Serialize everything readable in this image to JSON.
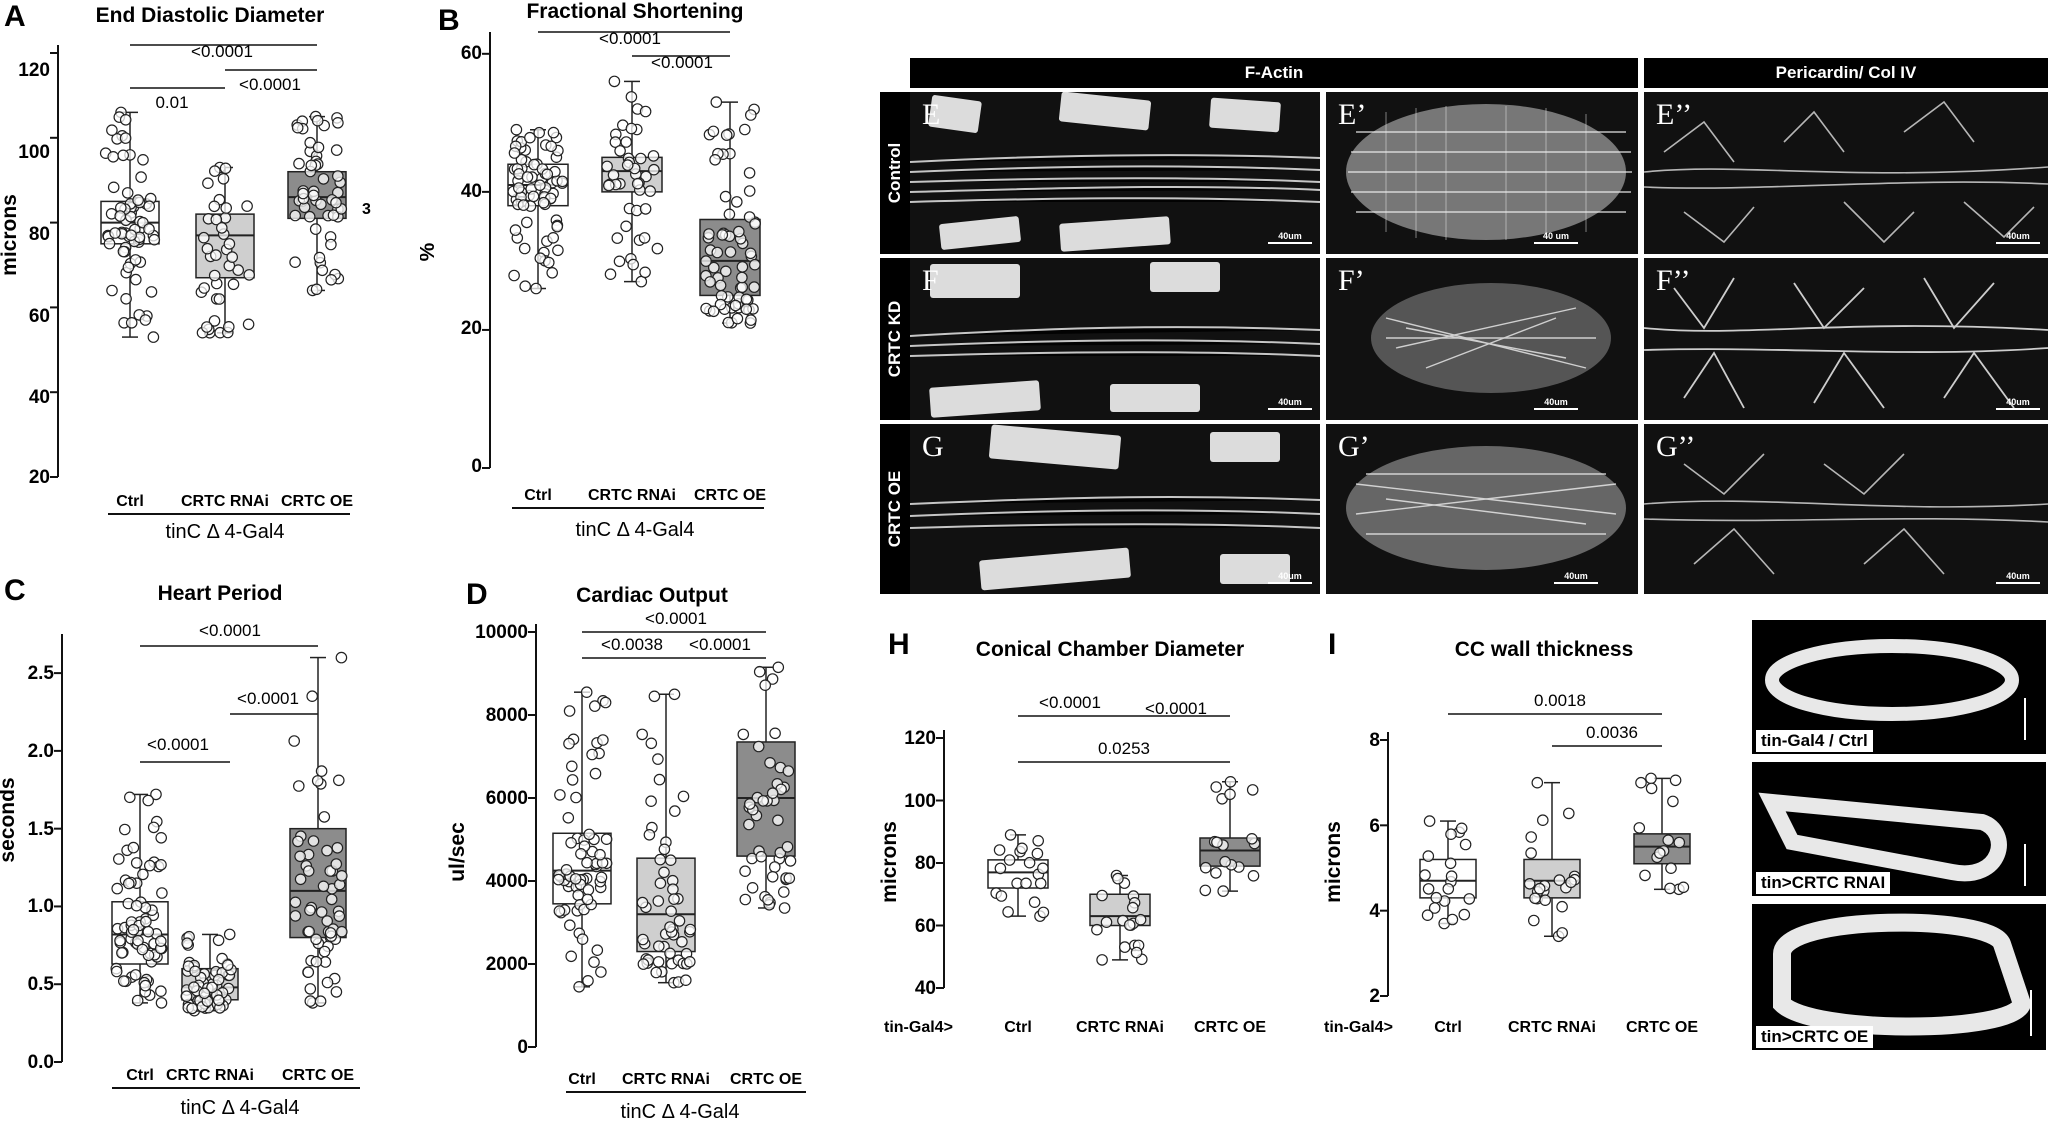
{
  "panels": {
    "A": {
      "label": "A",
      "title": "End Diastolic Diameter",
      "ylabel": "microns",
      "yticks": [
        "20",
        "40",
        "60",
        "80",
        "100",
        "120"
      ],
      "categories": [
        "Ctrl",
        "CRTC RNAi",
        "CRTC OE"
      ],
      "genotype": "tinC  Δ 4-Gal4",
      "sig": [
        "0.01",
        "<0.0001",
        "<0.0001"
      ],
      "note": "3"
    },
    "B": {
      "label": "B",
      "title": "Fractional Shortening",
      "ylabel": "%",
      "yticks": [
        "0",
        "20",
        "40",
        "60"
      ],
      "categories": [
        "Ctrl",
        "CRTC RNAi",
        "CRTC OE"
      ],
      "genotype": "tinC  Δ 4-Gal4",
      "sig": [
        "<0.0001",
        "<0.0001"
      ]
    },
    "C": {
      "label": "C",
      "title": "Heart  Period",
      "ylabel": "seconds",
      "yticks": [
        "0.0",
        "0.5",
        "1.0",
        "1.5",
        "2.0",
        "2.5"
      ],
      "categories": [
        "Ctrl",
        "CRTC RNAi",
        "CRTC OE"
      ],
      "genotype": "tinC  Δ 4-Gal4",
      "sig": [
        "<0.0001",
        "<0.0001",
        "<0.0001"
      ]
    },
    "D": {
      "label": "D",
      "title": "Cardiac Output",
      "ylabel": "ul/sec",
      "yticks": [
        "0",
        "2000",
        "4000",
        "6000",
        "8000",
        "10000"
      ],
      "categories": [
        "Ctrl",
        "CRTC RNAi",
        "CRTC OE"
      ],
      "genotype": "tinC  Δ 4-Gal4",
      "sig": [
        "<0.0038",
        "<0.0001",
        "<0.0001"
      ]
    },
    "H": {
      "label": "H",
      "title": "Conical Chamber Diameter",
      "ylabel": "microns",
      "yticks": [
        "40",
        "60",
        "80",
        "100",
        "120"
      ],
      "categories": [
        "Ctrl",
        "CRTC RNAi",
        "CRTC OE"
      ],
      "genotype": "tin-Gal4>",
      "sig": [
        "<0.0001",
        "<0.0001",
        "0.0253"
      ]
    },
    "I": {
      "label": "I",
      "title": "CC wall thickness",
      "ylabel": "microns",
      "yticks": [
        "2",
        "4",
        "6",
        "8"
      ],
      "categories": [
        "Ctrl",
        "CRTC RNAi",
        "CRTC OE"
      ],
      "genotype": "tin-Gal4>",
      "sig": [
        "0.0018",
        "0.0036"
      ]
    }
  },
  "micrographs": {
    "headers": [
      "F-Actin",
      "Pericardin/ Col IV"
    ],
    "rows": [
      "Control",
      "CRTC KD",
      "CRTC OE"
    ],
    "tiles": [
      [
        "E",
        "E’",
        "E’’"
      ],
      [
        "F",
        "F’",
        "F’’"
      ],
      [
        "G",
        "G’",
        "G’’"
      ]
    ],
    "scale": "40um",
    "scale_alt": "40 um"
  },
  "cross_sections": [
    "tin-Gal4 / Ctrl",
    "tin>CRTC RNAI",
    "tin>CRTC OE"
  ],
  "colors": {
    "ctrl_box": "#ffffff",
    "rnai_box": "#cfcfcf",
    "oe_box": "#8c8c8c",
    "micro_bg": "#111111",
    "fibers": "#e8e8e8"
  },
  "chart_data": [
    {
      "type": "box",
      "panel": "A",
      "title": "End Diastolic Diameter",
      "ylabel": "microns",
      "ylim": [
        20,
        120
      ],
      "categories": [
        "Ctrl",
        "CRTC RNAi",
        "CRTC OE"
      ],
      "series": [
        {
          "stats": {
            "min": 53,
            "q1": 75,
            "median": 80,
            "q3": 85,
            "max": 106
          },
          "n": 70
        },
        {
          "stats": {
            "min": 54,
            "q1": 67,
            "median": 77,
            "q3": 82,
            "max": 93
          },
          "n": 40
        },
        {
          "stats": {
            "min": 64,
            "q1": 81,
            "median": 86,
            "q3": 92,
            "max": 105
          },
          "n": 55
        }
      ],
      "comparisons": [
        {
          "pair": [
            "Ctrl",
            "CRTC RNAi"
          ],
          "p": "0.01"
        },
        {
          "pair": [
            "CRTC RNAi",
            "CRTC OE"
          ],
          "p": "<0.0001"
        },
        {
          "pair": [
            "Ctrl",
            "CRTC OE"
          ],
          "p": "<0.0001"
        }
      ]
    },
    {
      "type": "box",
      "panel": "B",
      "title": "Fractional Shortening",
      "ylabel": "%",
      "ylim": [
        0,
        60
      ],
      "categories": [
        "Ctrl",
        "CRTC RNAi",
        "CRTC OE"
      ],
      "series": [
        {
          "stats": {
            "min": 26,
            "q1": 38,
            "median": 41,
            "q3": 44,
            "max": 49
          },
          "n": 75
        },
        {
          "stats": {
            "min": 27,
            "q1": 40,
            "median": 43,
            "q3": 45,
            "max": 56
          },
          "n": 45
        },
        {
          "stats": {
            "min": 21,
            "q1": 25,
            "median": 30,
            "q3": 36,
            "max": 53
          },
          "n": 70
        }
      ],
      "comparisons": [
        {
          "pair": [
            "CRTC RNAi",
            "CRTC OE"
          ],
          "p": "<0.0001"
        },
        {
          "pair": [
            "Ctrl",
            "CRTC OE"
          ],
          "p": "<0.0001"
        }
      ]
    },
    {
      "type": "box",
      "panel": "C",
      "title": "Heart  Period",
      "ylabel": "seconds",
      "ylim": [
        0,
        2.6
      ],
      "categories": [
        "Ctrl",
        "CRTC RNAi",
        "CRTC OE"
      ],
      "series": [
        {
          "stats": {
            "min": 0.38,
            "q1": 0.63,
            "median": 0.82,
            "q3": 1.03,
            "max": 1.72
          },
          "n": 75
        },
        {
          "stats": {
            "min": 0.33,
            "q1": 0.4,
            "median": 0.48,
            "q3": 0.6,
            "max": 0.82
          },
          "n": 60
        },
        {
          "stats": {
            "min": 0.38,
            "q1": 0.8,
            "median": 1.1,
            "q3": 1.5,
            "max": 2.6
          },
          "n": 60
        }
      ],
      "comparisons": [
        {
          "pair": [
            "Ctrl",
            "CRTC RNAi"
          ],
          "p": "<0.0001"
        },
        {
          "pair": [
            "CRTC RNAi",
            "CRTC OE"
          ],
          "p": "<0.0001"
        },
        {
          "pair": [
            "Ctrl",
            "CRTC OE"
          ],
          "p": "<0.0001"
        }
      ]
    },
    {
      "type": "box",
      "panel": "D",
      "title": "Cardiac Output",
      "ylabel": "ul/sec",
      "ylim": [
        0,
        10000
      ],
      "categories": [
        "Ctrl",
        "CRTC RNAi",
        "CRTC OE"
      ],
      "series": [
        {
          "stats": {
            "min": 1450,
            "q1": 3450,
            "median": 4250,
            "q3": 5150,
            "max": 8550
          },
          "n": 70
        },
        {
          "stats": {
            "min": 1550,
            "q1": 2300,
            "median": 3200,
            "q3": 4550,
            "max": 8500
          },
          "n": 55
        },
        {
          "stats": {
            "min": 3350,
            "q1": 4600,
            "median": 6000,
            "q3": 7350,
            "max": 9150
          },
          "n": 45
        }
      ],
      "comparisons": [
        {
          "pair": [
            "Ctrl",
            "CRTC RNAi"
          ],
          "p": "<0.0038"
        },
        {
          "pair": [
            "CRTC RNAi",
            "CRTC OE"
          ],
          "p": "<0.0001"
        },
        {
          "pair": [
            "Ctrl",
            "CRTC OE"
          ],
          "p": "<0.0001"
        }
      ]
    },
    {
      "type": "box",
      "panel": "H",
      "title": "Conical Chamber Diameter",
      "ylabel": "microns",
      "ylim": [
        40,
        120
      ],
      "categories": [
        "Ctrl",
        "CRTC RNAi",
        "CRTC OE"
      ],
      "series": [
        {
          "stats": {
            "min": 63,
            "q1": 72,
            "median": 77,
            "q3": 81,
            "max": 89
          },
          "n": 20
        },
        {
          "stats": {
            "min": 49,
            "q1": 60,
            "median": 63,
            "q3": 70,
            "max": 76
          },
          "n": 20
        },
        {
          "stats": {
            "min": 71,
            "q1": 79,
            "median": 84,
            "q3": 88,
            "max": 106
          },
          "n": 18
        }
      ],
      "comparisons": [
        {
          "pair": [
            "Ctrl",
            "CRTC RNAi"
          ],
          "p": "<0.0001"
        },
        {
          "pair": [
            "CRTC RNAi",
            "CRTC OE"
          ],
          "p": "<0.0001"
        },
        {
          "pair": [
            "Ctrl",
            "CRTC OE"
          ],
          "p": "0.0253"
        }
      ]
    },
    {
      "type": "box",
      "panel": "I",
      "title": "CC wall thickness",
      "ylabel": "microns",
      "ylim": [
        2,
        8
      ],
      "categories": [
        "Ctrl",
        "CRTC RNAi",
        "CRTC OE"
      ],
      "series": [
        {
          "stats": {
            "min": 3.7,
            "q1": 4.3,
            "median": 4.7,
            "q3": 5.2,
            "max": 6.1
          },
          "n": 20
        },
        {
          "stats": {
            "min": 3.4,
            "q1": 4.3,
            "median": 4.7,
            "q3": 5.2,
            "max": 7.0
          },
          "n": 22
        },
        {
          "stats": {
            "min": 4.5,
            "q1": 5.1,
            "median": 5.5,
            "q3": 5.8,
            "max": 7.1
          },
          "n": 16
        }
      ],
      "comparisons": [
        {
          "pair": [
            "Ctrl",
            "CRTC OE"
          ],
          "p": "0.0018"
        },
        {
          "pair": [
            "CRTC RNAi",
            "CRTC OE"
          ],
          "p": "0.0036"
        }
      ]
    }
  ]
}
